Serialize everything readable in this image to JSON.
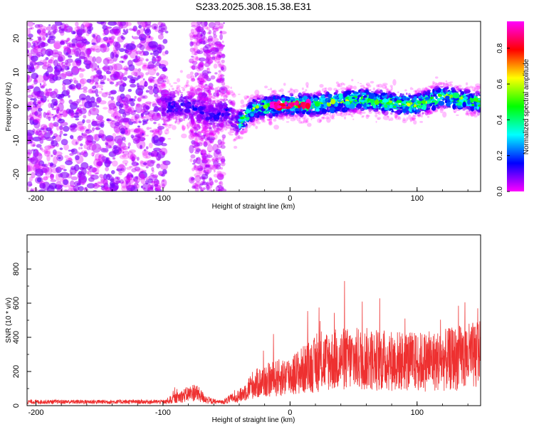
{
  "title": "S233.2025.308.15.38.E31",
  "chart_data": [
    {
      "type": "heatmap",
      "name": "spectrogram",
      "xlabel": "Height of straight line (km)",
      "ylabel": "Frequency (Hz)",
      "xlim": [
        -207,
        150
      ],
      "ylim": [
        -25,
        25
      ],
      "xticks": [
        -200,
        -100,
        0,
        100
      ],
      "yticks": [
        -20,
        -10,
        0,
        10,
        20
      ],
      "xtick_labels": [
        "-200",
        "-100",
        "0",
        "100"
      ],
      "ytick_labels": [
        "-20",
        "-10",
        "0",
        "10",
        "20"
      ],
      "colorbar": {
        "label": "Normalized spectral amplitude",
        "range": [
          0,
          0.95
        ],
        "ticks": [
          0.0,
          0.2,
          0.4,
          0.6,
          0.8
        ],
        "tick_labels": [
          "0.0",
          "0.2",
          "0.4",
          "0.6",
          "0.8"
        ],
        "colors": [
          "#ff00ff",
          "#0000ff",
          "#00ffff",
          "#00ff00",
          "#ffff00",
          "#ff0000",
          "#ff00ff"
        ]
      },
      "ridge": {
        "description_values_x": [
          -100,
          -80,
          -60,
          -50,
          -40,
          -30,
          -20,
          0,
          20,
          40,
          60,
          80,
          100,
          120,
          150
        ],
        "description_values_y": [
          0,
          0,
          -3,
          -1,
          -5,
          -1,
          0,
          0.5,
          0.5,
          1.5,
          2,
          1,
          0.5,
          3,
          1
        ]
      }
    },
    {
      "type": "line",
      "name": "snr",
      "xlabel": "Height of straight line (km)",
      "ylabel": "SNR (10 * v/v)",
      "xlim": [
        -207,
        150
      ],
      "ylim": [
        0,
        1000
      ],
      "xticks": [
        -200,
        -100,
        0,
        100
      ],
      "yticks": [
        0,
        200,
        400,
        600,
        800
      ],
      "xtick_labels": [
        "-200",
        "-100",
        "0",
        "100"
      ],
      "ytick_labels": [
        "0",
        "200",
        "400",
        "600",
        "800"
      ],
      "color": "#ee3030",
      "envelope_x": [
        -207,
        -100,
        -95,
        -75,
        -65,
        -55,
        -38,
        -30,
        -20,
        -10,
        0,
        10,
        20,
        30,
        40,
        60,
        80,
        100,
        120,
        140,
        150
      ],
      "envelope_y": [
        20,
        20,
        40,
        100,
        40,
        20,
        80,
        150,
        180,
        200,
        220,
        260,
        300,
        330,
        340,
        340,
        330,
        320,
        330,
        360,
        370
      ]
    }
  ]
}
